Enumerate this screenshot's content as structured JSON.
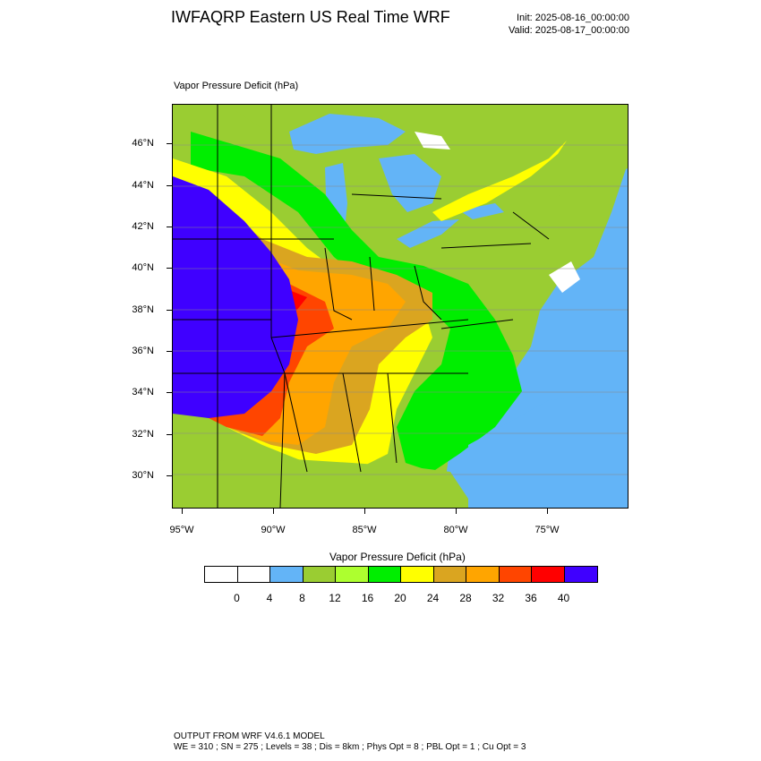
{
  "header": {
    "title": "IWFAQRP Eastern US Real Time WRF",
    "init": "Init: 2025-08-16_00:00:00",
    "valid": "Valid: 2025-08-17_00:00:00"
  },
  "plot": {
    "title": "Vapor Pressure Deficit   (hPa)"
  },
  "axes": {
    "lat_labels": [
      "46°N",
      "44°N",
      "42°N",
      "40°N",
      "38°N",
      "36°N",
      "34°N",
      "32°N",
      "30°N"
    ],
    "lon_labels": [
      "95°W",
      "90°W",
      "85°W",
      "80°W",
      "75°W"
    ]
  },
  "colorbar": {
    "title": "Vapor Pressure Deficit  (hPa)",
    "labels": [
      "0",
      "4",
      "8",
      "12",
      "16",
      "20",
      "24",
      "28",
      "32",
      "36",
      "40"
    ],
    "colors": [
      "#ffffff",
      "#ffffff",
      "#63b4f7",
      "#9acd32",
      "#adff2f",
      "#00ee00",
      "#ffff00",
      "#daa520",
      "#ffa500",
      "#ff4500",
      "#ff0000",
      "#3f00ff"
    ]
  },
  "footer": {
    "line1": "OUTPUT FROM WRF V4.6.1 MODEL",
    "line2": "WE = 310 ; SN = 275 ; Levels = 38 ; Dis = 8km ; Phys Opt = 8 ; PBL Opt = 1 ; Cu Opt = 3"
  }
}
